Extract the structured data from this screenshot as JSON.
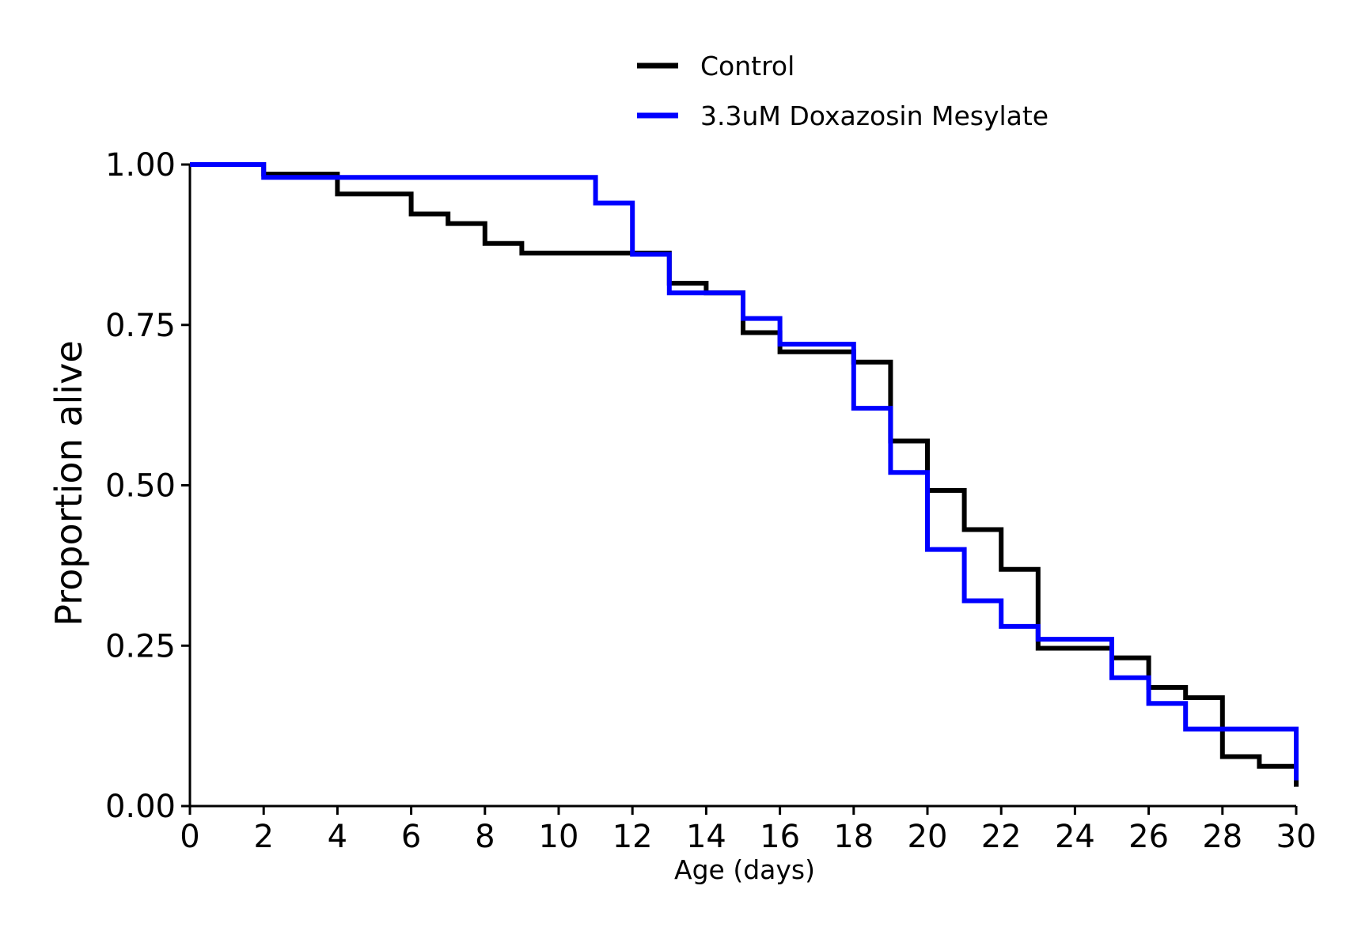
{
  "chart_data": {
    "type": "line",
    "step": true,
    "xlabel": "Age (days)",
    "ylabel": "Proportion alive",
    "xlim": [
      0,
      30
    ],
    "ylim": [
      0,
      1
    ],
    "xticks": [
      0,
      2,
      4,
      6,
      8,
      10,
      12,
      14,
      16,
      18,
      20,
      22,
      24,
      26,
      28,
      30
    ],
    "yticks": [
      0.0,
      0.25,
      0.5,
      0.75,
      1.0
    ],
    "ytick_labels": [
      "0.00",
      "0.25",
      "0.50",
      "0.75",
      "1.00"
    ],
    "grid": false,
    "legend_position": "top-center",
    "series": [
      {
        "name": "Control",
        "color": "#000000",
        "x": [
          0,
          2,
          4,
          6,
          7,
          8,
          9,
          12,
          13,
          14,
          15,
          16,
          18,
          19,
          20,
          21,
          22,
          23,
          25,
          26,
          27,
          28,
          29,
          30,
          30
        ],
        "y": [
          1.0,
          0.985,
          0.954,
          0.923,
          0.908,
          0.877,
          0.862,
          0.862,
          0.815,
          0.8,
          0.738,
          0.708,
          0.692,
          0.569,
          0.492,
          0.431,
          0.369,
          0.246,
          0.231,
          0.185,
          0.169,
          0.077,
          0.062,
          0.062,
          0.03
        ]
      },
      {
        "name": "3.3uM Doxazosin Mesylate",
        "color": "#0000ff",
        "x": [
          0,
          2,
          11,
          12,
          13,
          15,
          16,
          18,
          19,
          20,
          21,
          22,
          23,
          25,
          26,
          27,
          30,
          30
        ],
        "y": [
          1.0,
          0.98,
          0.94,
          0.86,
          0.8,
          0.76,
          0.72,
          0.62,
          0.52,
          0.4,
          0.32,
          0.28,
          0.26,
          0.2,
          0.16,
          0.12,
          0.12,
          0.04
        ]
      }
    ]
  }
}
